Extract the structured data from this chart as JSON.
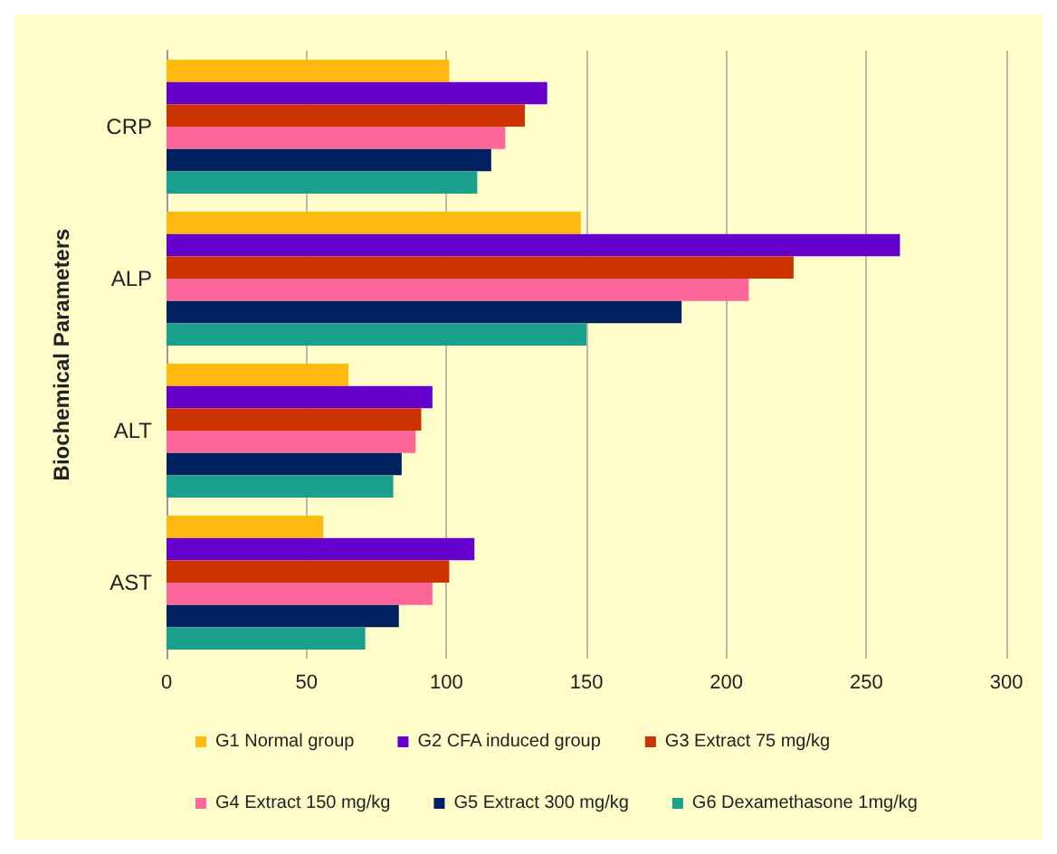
{
  "chart_data": {
    "type": "bar",
    "orientation": "horizontal",
    "ylabel": "Biochemical Parameters",
    "categories": [
      "CRP",
      "ALP",
      "ALT",
      "AST"
    ],
    "series": [
      {
        "name": "G1 Normal group",
        "color": "#ffb90f",
        "values": [
          101,
          148,
          65,
          56
        ]
      },
      {
        "name": "G2 CFA induced group",
        "color": "#6600cc",
        "values": [
          136,
          262,
          95,
          110
        ]
      },
      {
        "name": "G3 Extract 75 mg/kg",
        "color": "#cc3300",
        "values": [
          128,
          224,
          91,
          101
        ]
      },
      {
        "name": "G4 Extract 150 mg/kg",
        "color": "#ff6699",
        "values": [
          121,
          208,
          89,
          95
        ]
      },
      {
        "name": "G5 Extract 300 mg/kg",
        "color": "#002060",
        "values": [
          116,
          184,
          84,
          83
        ]
      },
      {
        "name": "G6 Dexamethasone 1mg/kg",
        "color": "#19a08c",
        "values": [
          111,
          150,
          81,
          71
        ]
      }
    ],
    "xlim": [
      0,
      300
    ],
    "xticks": [
      0,
      50,
      100,
      150,
      200,
      250,
      300
    ],
    "grid": "x",
    "legend": "bottom"
  }
}
